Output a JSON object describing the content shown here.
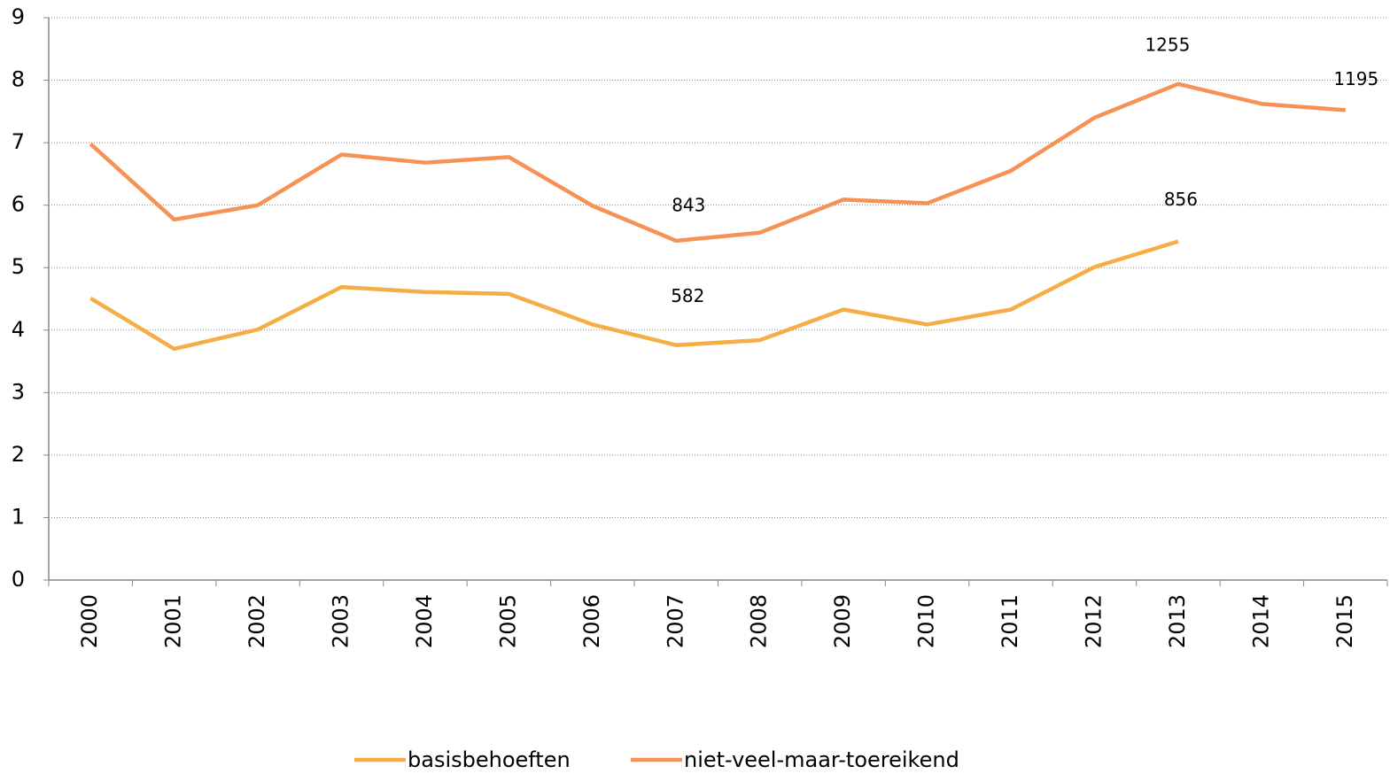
{
  "chart_data": {
    "type": "line",
    "categories": [
      "2000",
      "2001",
      "2002",
      "2003",
      "2004",
      "2005",
      "2006",
      "2007",
      "2008",
      "2009",
      "2010",
      "2011",
      "2012",
      "2013",
      "2014",
      "2015"
    ],
    "series": [
      {
        "name": "basisbehoeften",
        "color": "#f5ad45",
        "values": [
          4.51,
          3.7,
          4.01,
          4.69,
          4.61,
          4.58,
          4.09,
          3.76,
          3.84,
          4.33,
          4.09,
          4.33,
          5.01,
          5.42,
          null,
          null
        ]
      },
      {
        "name": "niet-veel-maar-toereikend",
        "color": "#f79256",
        "values": [
          6.98,
          5.77,
          6.0,
          6.81,
          6.68,
          6.77,
          5.99,
          5.43,
          5.56,
          6.09,
          6.03,
          6.55,
          7.4,
          7.94,
          7.62,
          7.52
        ]
      }
    ],
    "annotations": [
      {
        "text": "843",
        "category": "2007",
        "series": "niet-veel-maar-toereikend"
      },
      {
        "text": "582",
        "category": "2007",
        "series": "basisbehoeften"
      },
      {
        "text": "1255",
        "category": "2013",
        "series": "niet-veel-maar-toereikend"
      },
      {
        "text": "856",
        "category": "2013",
        "series": "basisbehoeften"
      },
      {
        "text": "1195",
        "category": "2015",
        "series": "niet-veel-maar-toereikend"
      }
    ],
    "ylim": [
      0,
      9
    ],
    "yticks": [
      0,
      1,
      2,
      3,
      4,
      5,
      6,
      7,
      8,
      9
    ],
    "grid": true,
    "legend": "bottom"
  }
}
